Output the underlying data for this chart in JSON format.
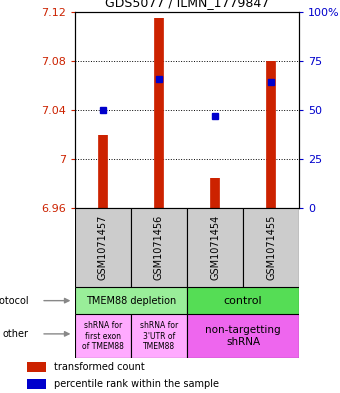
{
  "title": "GDS5077 / ILMN_1779847",
  "samples": [
    "GSM1071457",
    "GSM1071456",
    "GSM1071454",
    "GSM1071455"
  ],
  "bar_bottoms": [
    6.96,
    6.96,
    6.96,
    6.96
  ],
  "bar_tops": [
    7.02,
    7.115,
    6.985,
    7.08
  ],
  "blue_dots": [
    7.04,
    7.065,
    7.035,
    7.063
  ],
  "ylim": [
    6.96,
    7.12
  ],
  "yticks_left": [
    6.96,
    7.0,
    7.04,
    7.08,
    7.12
  ],
  "yticks_left_labels": [
    "6.96",
    "7",
    "7.04",
    "7.08",
    "7.12"
  ],
  "yticks_right": [
    0,
    25,
    50,
    75,
    100
  ],
  "yticks_right_labels": [
    "0",
    "25",
    "50",
    "75",
    "100%"
  ],
  "hlines": [
    7.0,
    7.04,
    7.08
  ],
  "bar_color": "#cc2200",
  "dot_color": "#0000cc",
  "gray_box_color": "#cccccc",
  "protocol_labels": [
    "TMEM88 depletion",
    "control"
  ],
  "protocol_colors": [
    "#99ee99",
    "#55dd55"
  ],
  "other_labels": [
    "shRNA for\nfirst exon\nof TMEM88",
    "shRNA for\n3'UTR of\nTMEM88",
    "non-targetting\nshRNA"
  ],
  "other_colors": [
    "#ffaaff",
    "#ffaaff",
    "#ee66ee"
  ],
  "legend_bar_label": "transformed count",
  "legend_dot_label": "percentile rank within the sample",
  "protocol_text": "protocol",
  "other_text": "other",
  "left_color": "#cc2200",
  "right_color": "#0000cc"
}
